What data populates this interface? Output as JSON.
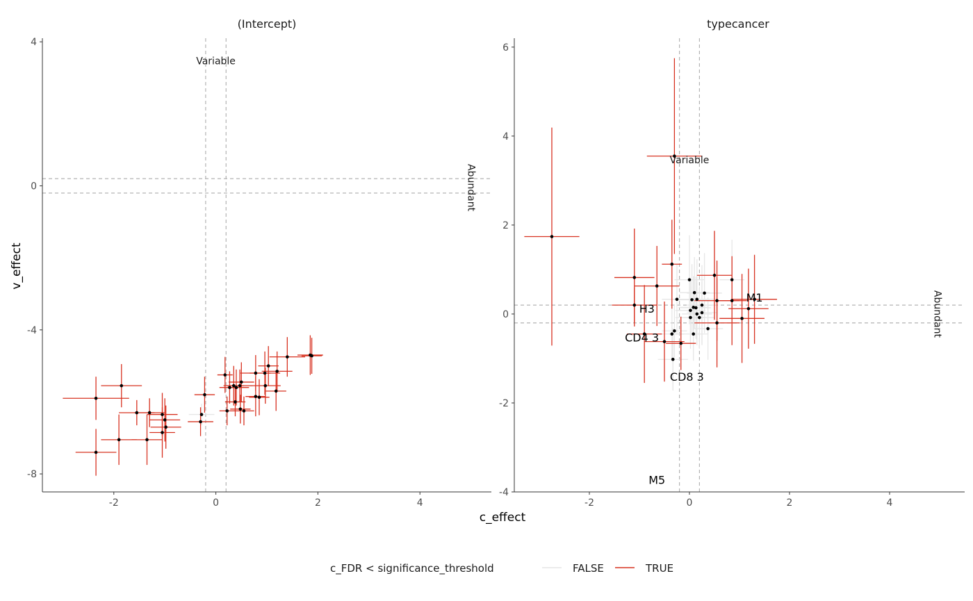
{
  "chart_data": {
    "type": "scatter",
    "x_label": "c_effect",
    "y_label": "v_effect",
    "legend": {
      "title": "c_FDR < significance_threshold",
      "position": "bottom",
      "entries": [
        {
          "label": "FALSE",
          "color": "#e6e6e6"
        },
        {
          "label": "TRUE",
          "color": "#d7301f"
        }
      ]
    },
    "colors": {
      "point": "#000000",
      "guide": "#b3b3b3",
      "axis": "#333333"
    },
    "panels": [
      {
        "title": "(Intercept)",
        "xlim": [
          -3.4,
          5.4
        ],
        "ylim": [
          -8.5,
          4.1
        ],
        "x_ticks": [
          -2,
          0,
          2,
          4
        ],
        "y_ticks": [
          -8,
          -4,
          0,
          4
        ],
        "x_tick_labels": [
          "-2",
          "0",
          "2",
          "4"
        ],
        "y_tick_labels": [
          "-8",
          "-4",
          "0",
          "4"
        ],
        "vlines": [
          -0.2,
          0.2
        ],
        "hlines": [
          -0.2,
          0.2
        ],
        "annotations": [
          {
            "text": "Variable",
            "x": 0.0,
            "y": 3.45,
            "rotate": 0
          },
          {
            "text": "Abundant",
            "x": 5.0,
            "y": -0.05,
            "rotate": 90
          }
        ],
        "labels": [],
        "points": [
          {
            "x": -2.35,
            "y": -5.9,
            "xerr": 0.65,
            "yerr": 0.6,
            "sig": true
          },
          {
            "x": -1.85,
            "y": -5.55,
            "xerr": 0.4,
            "yerr": 0.6,
            "sig": true
          },
          {
            "x": -2.35,
            "y": -7.4,
            "xerr": 0.4,
            "yerr": 0.65,
            "sig": true
          },
          {
            "x": -1.9,
            "y": -7.05,
            "xerr": 0.35,
            "yerr": 0.7,
            "sig": true
          },
          {
            "x": -1.55,
            "y": -6.3,
            "xerr": 0.35,
            "yerr": 0.35,
            "sig": true
          },
          {
            "x": -1.3,
            "y": -6.3,
            "xerr": 0.3,
            "yerr": 0.4,
            "sig": true
          },
          {
            "x": -1.05,
            "y": -6.35,
            "xerr": 0.3,
            "yerr": 0.6,
            "sig": true
          },
          {
            "x": -1.35,
            "y": -7.05,
            "xerr": 0.3,
            "yerr": 0.7,
            "sig": true
          },
          {
            "x": -1.05,
            "y": -6.85,
            "xerr": 0.25,
            "yerr": 0.7,
            "sig": true
          },
          {
            "x": -1.0,
            "y": -6.5,
            "xerr": 0.3,
            "yerr": 0.6,
            "sig": true
          },
          {
            "x": -0.98,
            "y": -6.7,
            "xerr": 0.3,
            "yerr": 0.6,
            "sig": true
          },
          {
            "x": -0.3,
            "y": -6.55,
            "xerr": 0.25,
            "yerr": 0.4,
            "sig": true
          },
          {
            "x": -0.28,
            "y": -6.35,
            "xerr": 0.25,
            "yerr": 0.3,
            "sig": false
          },
          {
            "x": -0.22,
            "y": -5.8,
            "xerr": 0.2,
            "yerr": 0.5,
            "sig": true
          },
          {
            "x": 0.18,
            "y": -5.25,
            "xerr": 0.15,
            "yerr": 0.5,
            "sig": true
          },
          {
            "x": 0.27,
            "y": -5.6,
            "xerr": 0.2,
            "yerr": 0.45,
            "sig": true
          },
          {
            "x": 0.35,
            "y": -5.55,
            "xerr": 0.2,
            "yerr": 0.55,
            "sig": true
          },
          {
            "x": 0.4,
            "y": -5.6,
            "xerr": 0.25,
            "yerr": 0.5,
            "sig": true
          },
          {
            "x": 0.38,
            "y": -6.0,
            "xerr": 0.2,
            "yerr": 0.4,
            "sig": true
          },
          {
            "x": 0.47,
            "y": -5.55,
            "xerr": 0.25,
            "yerr": 0.45,
            "sig": true
          },
          {
            "x": 0.5,
            "y": -5.45,
            "xerr": 0.25,
            "yerr": 0.55,
            "sig": true
          },
          {
            "x": 0.48,
            "y": -6.2,
            "xerr": 0.2,
            "yerr": 0.4,
            "sig": true
          },
          {
            "x": 0.22,
            "y": -6.25,
            "xerr": 0.15,
            "yerr": 0.4,
            "sig": true
          },
          {
            "x": 0.55,
            "y": -6.25,
            "xerr": 0.2,
            "yerr": 0.4,
            "sig": true
          },
          {
            "x": 0.78,
            "y": -5.85,
            "xerr": 0.2,
            "yerr": 0.55,
            "sig": true
          },
          {
            "x": 0.85,
            "y": -5.87,
            "xerr": 0.2,
            "yerr": 0.5,
            "sig": true
          },
          {
            "x": 0.78,
            "y": -5.2,
            "xerr": 0.3,
            "yerr": 0.5,
            "sig": true
          },
          {
            "x": 0.96,
            "y": -5.2,
            "xerr": 0.3,
            "yerr": 0.6,
            "sig": true
          },
          {
            "x": 0.97,
            "y": -5.55,
            "xerr": 0.3,
            "yerr": 0.5,
            "sig": true
          },
          {
            "x": 1.03,
            "y": -5.0,
            "xerr": 0.2,
            "yerr": 0.55,
            "sig": true
          },
          {
            "x": 1.2,
            "y": -5.15,
            "xerr": 0.3,
            "yerr": 0.55,
            "sig": true
          },
          {
            "x": 1.18,
            "y": -5.7,
            "xerr": 0.2,
            "yerr": 0.55,
            "sig": true
          },
          {
            "x": 1.4,
            "y": -4.75,
            "xerr": 0.35,
            "yerr": 0.55,
            "sig": true
          },
          {
            "x": 1.85,
            "y": -4.7,
            "xerr": 0.25,
            "yerr": 0.55,
            "sig": true
          },
          {
            "x": 1.88,
            "y": -4.72,
            "xerr": 0.2,
            "yerr": 0.5,
            "sig": true
          }
        ]
      },
      {
        "title": "typecancer",
        "xlim": [
          -3.5,
          5.5
        ],
        "ylim": [
          -4.0,
          6.2
        ],
        "x_ticks": [
          -2,
          0,
          2,
          4
        ],
        "y_ticks": [
          -4,
          -2,
          0,
          2,
          4,
          6
        ],
        "x_tick_labels": [
          "-2",
          "0",
          "2",
          "4"
        ],
        "y_tick_labels": [
          "-4",
          "-2",
          "0",
          "2",
          "4",
          "6"
        ],
        "vlines": [
          -0.2,
          0.2
        ],
        "hlines": [
          -0.2,
          0.2
        ],
        "annotations": [
          {
            "text": "Variable",
            "x": 0.0,
            "y": 3.45,
            "rotate": 0
          },
          {
            "text": "Abundant",
            "x": 4.95,
            "y": 0.0,
            "rotate": 90
          }
        ],
        "labels": [
          {
            "text": "M1",
            "x": 1.3,
            "y": 0.35
          },
          {
            "text": "H3",
            "x": -0.85,
            "y": 0.1
          },
          {
            "text": "CD4 3",
            "x": -0.95,
            "y": -0.55
          },
          {
            "text": "CD8 3",
            "x": -0.05,
            "y": -1.43
          },
          {
            "text": "M5",
            "x": -0.65,
            "y": -3.75
          }
        ],
        "points": [
          {
            "x": -2.75,
            "y": 1.74,
            "xerr": 0.55,
            "yerr": 2.45,
            "sig": true
          },
          {
            "x": -0.3,
            "y": 3.55,
            "xerr": 0.55,
            "yerr": 2.2,
            "sig": true
          },
          {
            "x": -0.35,
            "y": 1.12,
            "xerr": 0.2,
            "yerr": 1.0,
            "sig": true
          },
          {
            "x": -1.1,
            "y": 0.82,
            "xerr": 0.4,
            "yerr": 1.1,
            "sig": true
          },
          {
            "x": -0.65,
            "y": 0.63,
            "xerr": 0.45,
            "yerr": 0.9,
            "sig": true
          },
          {
            "x": -1.1,
            "y": 0.2,
            "xerr": 0.45,
            "yerr": 0.4,
            "sig": true
          },
          {
            "x": -0.25,
            "y": 0.33,
            "xerr": 0.3,
            "yerr": 0.8,
            "sig": false
          },
          {
            "x": 0.5,
            "y": 0.87,
            "xerr": 0.35,
            "yerr": 1.0,
            "sig": true
          },
          {
            "x": 0.85,
            "y": 0.77,
            "xerr": 0.25,
            "yerr": 0.9,
            "sig": false
          },
          {
            "x": 0.0,
            "y": 0.77,
            "xerr": 0.3,
            "yerr": 1.0,
            "sig": false
          },
          {
            "x": 0.1,
            "y": 0.48,
            "xerr": 0.3,
            "yerr": 0.8,
            "sig": false
          },
          {
            "x": 0.3,
            "y": 0.47,
            "xerr": 0.35,
            "yerr": 0.9,
            "sig": false
          },
          {
            "x": 0.05,
            "y": 0.32,
            "xerr": 0.35,
            "yerr": 0.8,
            "sig": false
          },
          {
            "x": 0.15,
            "y": 0.33,
            "xerr": 0.35,
            "yerr": 0.9,
            "sig": false
          },
          {
            "x": 0.55,
            "y": 0.3,
            "xerr": 0.45,
            "yerr": 0.9,
            "sig": true
          },
          {
            "x": 0.85,
            "y": 0.3,
            "xerr": 0.3,
            "yerr": 1.0,
            "sig": true
          },
          {
            "x": 1.3,
            "y": 0.33,
            "xerr": 0.45,
            "yerr": 1.0,
            "sig": true
          },
          {
            "x": 1.18,
            "y": 0.12,
            "xerr": 0.4,
            "yerr": 0.9,
            "sig": true
          },
          {
            "x": 0.25,
            "y": 0.2,
            "xerr": 0.3,
            "yerr": 0.9,
            "sig": false
          },
          {
            "x": 0.08,
            "y": 0.15,
            "xerr": 0.3,
            "yerr": 0.7,
            "sig": false
          },
          {
            "x": 0.13,
            "y": 0.14,
            "xerr": 0.3,
            "yerr": 0.7,
            "sig": false
          },
          {
            "x": 0.02,
            "y": 0.08,
            "xerr": 0.3,
            "yerr": 0.7,
            "sig": false
          },
          {
            "x": 0.15,
            "y": 0.0,
            "xerr": 0.3,
            "yerr": 0.7,
            "sig": false
          },
          {
            "x": 0.25,
            "y": 0.03,
            "xerr": 0.3,
            "yerr": 0.7,
            "sig": false
          },
          {
            "x": 0.02,
            "y": -0.08,
            "xerr": 0.3,
            "yerr": 0.7,
            "sig": false
          },
          {
            "x": 0.2,
            "y": -0.08,
            "xerr": 0.3,
            "yerr": 0.7,
            "sig": false
          },
          {
            "x": 1.05,
            "y": -0.1,
            "xerr": 0.45,
            "yerr": 1.0,
            "sig": true
          },
          {
            "x": 0.55,
            "y": -0.2,
            "xerr": 0.45,
            "yerr": 1.0,
            "sig": true
          },
          {
            "x": 0.37,
            "y": -0.33,
            "xerr": 0.3,
            "yerr": 0.7,
            "sig": false
          },
          {
            "x": -0.3,
            "y": -0.38,
            "xerr": 0.25,
            "yerr": 0.6,
            "sig": false
          },
          {
            "x": -0.35,
            "y": -0.45,
            "xerr": 0.25,
            "yerr": 0.6,
            "sig": false
          },
          {
            "x": 0.08,
            "y": -0.45,
            "xerr": 0.3,
            "yerr": 0.6,
            "sig": false
          },
          {
            "x": -0.9,
            "y": -0.45,
            "xerr": 0.35,
            "yerr": 1.1,
            "sig": true
          },
          {
            "x": -0.5,
            "y": -0.62,
            "xerr": 0.4,
            "yerr": 0.9,
            "sig": true
          },
          {
            "x": -0.17,
            "y": -0.66,
            "xerr": 0.3,
            "yerr": 0.6,
            "sig": true
          },
          {
            "x": -0.33,
            "y": -1.02,
            "xerr": 0.3,
            "yerr": 0.7,
            "sig": false
          }
        ]
      }
    ]
  }
}
